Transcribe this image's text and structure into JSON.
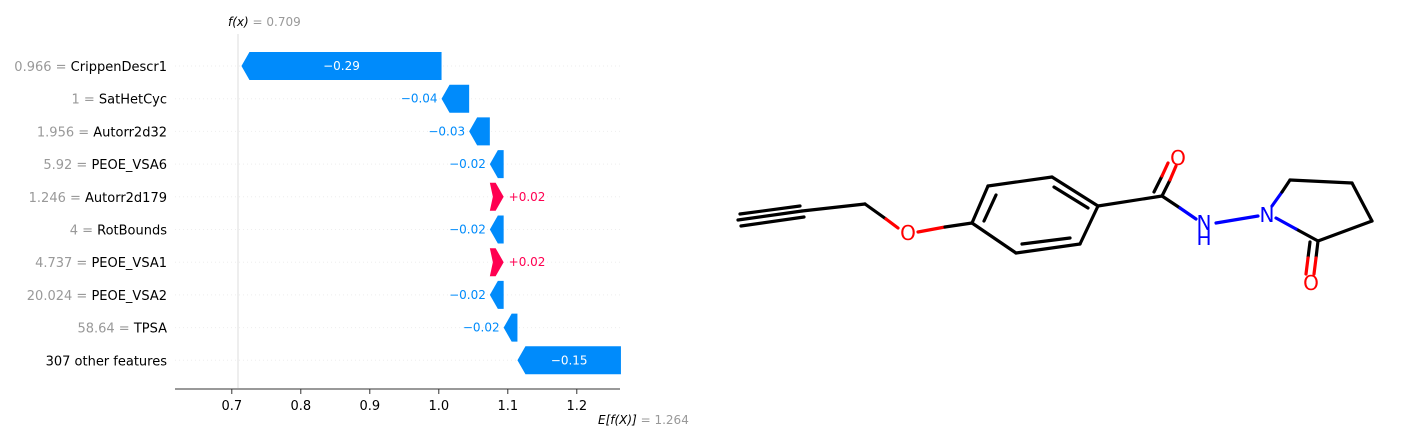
{
  "chart_data": {
    "type": "waterfall",
    "fx_label": "f(x)",
    "fx_value": "0.709",
    "ex_label": "E[f(X)]",
    "ex_value": "1.264",
    "base_value": 1.264,
    "final_value": 0.709,
    "xlim": [
      0.62,
      1.27
    ],
    "xticks": [
      0.7,
      0.8,
      0.9,
      1.0,
      1.1,
      1.2
    ],
    "xtick_labels": [
      "0.7",
      "0.8",
      "0.9",
      "1.0",
      "1.1",
      "1.2"
    ],
    "features": [
      {
        "value": "0.966",
        "name": "CrippenDescr1",
        "shap": -0.29,
        "label": "−0.29"
      },
      {
        "value": "1",
        "name": "SatHetCyc",
        "shap": -0.04,
        "label": "−0.04"
      },
      {
        "value": "1.956",
        "name": "Autorr2d32",
        "shap": -0.03,
        "label": "−0.03"
      },
      {
        "value": "5.92",
        "name": "PEOE_VSA6",
        "shap": -0.02,
        "label": "−0.02"
      },
      {
        "value": "1.246",
        "name": "Autorr2d179",
        "shap": 0.02,
        "label": "+0.02"
      },
      {
        "value": "4",
        "name": "RotBounds",
        "shap": -0.02,
        "label": "−0.02"
      },
      {
        "value": "4.737",
        "name": "PEOE_VSA1",
        "shap": 0.02,
        "label": "+0.02"
      },
      {
        "value": "20.024",
        "name": "PEOE_VSA2",
        "shap": -0.02,
        "label": "−0.02"
      },
      {
        "value": "58.64",
        "name": "TPSA",
        "shap": -0.02,
        "label": "−0.02"
      },
      {
        "value": "",
        "name": "307 other features",
        "shap": -0.15,
        "label": "−0.15"
      }
    ],
    "colors": {
      "negative": "#008bfb",
      "positive": "#ff0051",
      "value_text": "#999999",
      "name_text": "#000000"
    }
  },
  "molecule": {
    "atom_labels": {
      "oxygen": "O",
      "nitrogen": "N",
      "hydrogen": "H"
    },
    "colors": {
      "bond": "#000000",
      "oxygen": "#ff0000",
      "nitrogen": "#0000ff"
    }
  }
}
